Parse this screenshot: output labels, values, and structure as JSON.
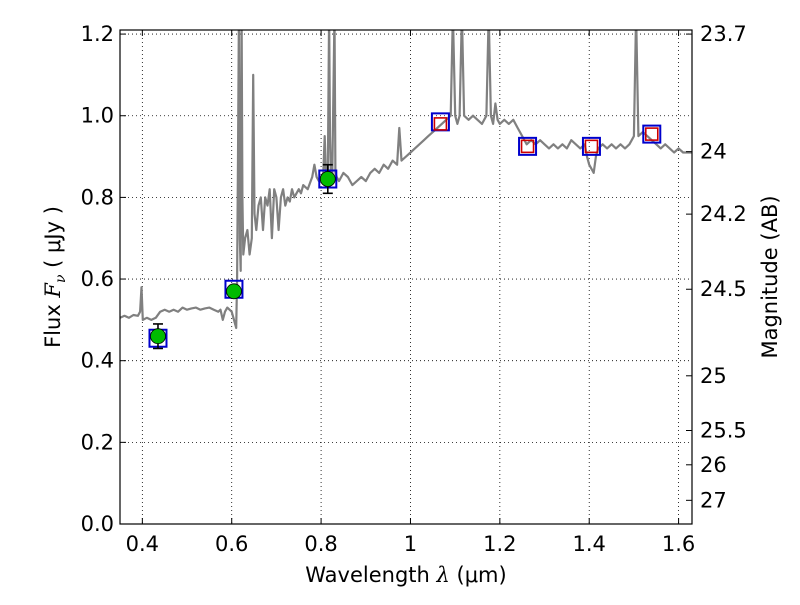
{
  "chart_data": {
    "type": "line",
    "title": "",
    "xlabel": "Wavelength  λ (μm)",
    "ylabel": "Flux  F_ν ( μJy )",
    "ylabel_parts": {
      "prefix": "Flux  ",
      "symbol": "F",
      "subscript": "ν",
      "suffix": " ( μJy )"
    },
    "xlabel_parts": {
      "prefix": "Wavelength  ",
      "symbol": "λ",
      "suffix": " (μm)"
    },
    "y2label": "Magnitude (AB)",
    "xlim": [
      0.35,
      1.63
    ],
    "ylim": [
      0.0,
      1.21
    ],
    "grid": true,
    "x_ticks": [
      0.4,
      0.6,
      0.8,
      1.0,
      1.2,
      1.4,
      1.6
    ],
    "x_tick_labels": [
      "0.4",
      "0.6",
      "0.8",
      "1",
      "1.2",
      "1.4",
      "1.6"
    ],
    "y_ticks": [
      0.0,
      0.2,
      0.4,
      0.6,
      0.8,
      1.0,
      1.2
    ],
    "y_tick_labels": [
      "0.0",
      "0.2",
      "0.4",
      "0.6",
      "0.8",
      "1.0",
      "1.2"
    ],
    "y2_ticks": [
      {
        "label": "23.7",
        "flux": 1.2
      },
      {
        "label": "24",
        "flux": 0.912
      },
      {
        "label": "24.2",
        "flux": 0.759
      },
      {
        "label": "24.5",
        "flux": 0.575
      },
      {
        "label": "25",
        "flux": 0.363
      },
      {
        "label": "25.5",
        "flux": 0.229
      },
      {
        "label": "26",
        "flux": 0.145
      },
      {
        "label": "27",
        "flux": 0.058
      }
    ],
    "series": [
      {
        "name": "model-spectrum",
        "kind": "line",
        "color": "#808080",
        "points": [
          [
            0.35,
            0.505
          ],
          [
            0.36,
            0.51
          ],
          [
            0.37,
            0.505
          ],
          [
            0.38,
            0.512
          ],
          [
            0.39,
            0.51
          ],
          [
            0.395,
            0.52
          ],
          [
            0.398,
            0.58
          ],
          [
            0.401,
            0.5
          ],
          [
            0.41,
            0.505
          ],
          [
            0.42,
            0.5
          ],
          [
            0.43,
            0.505
          ],
          [
            0.44,
            0.52
          ],
          [
            0.45,
            0.525
          ],
          [
            0.46,
            0.52
          ],
          [
            0.47,
            0.525
          ],
          [
            0.48,
            0.52
          ],
          [
            0.49,
            0.53
          ],
          [
            0.5,
            0.525
          ],
          [
            0.51,
            0.528
          ],
          [
            0.52,
            0.53
          ],
          [
            0.53,
            0.525
          ],
          [
            0.54,
            0.528
          ],
          [
            0.55,
            0.53
          ],
          [
            0.56,
            0.525
          ],
          [
            0.57,
            0.52
          ],
          [
            0.575,
            0.525
          ],
          [
            0.58,
            0.5
          ],
          [
            0.585,
            0.52
          ],
          [
            0.59,
            0.53
          ],
          [
            0.6,
            0.52
          ],
          [
            0.605,
            0.5
          ],
          [
            0.61,
            0.48
          ],
          [
            0.612,
            0.6
          ],
          [
            0.614,
            0.9
          ],
          [
            0.616,
            1.25
          ],
          [
            0.618,
            0.7
          ],
          [
            0.62,
            0.62
          ],
          [
            0.622,
            1.25
          ],
          [
            0.624,
            0.8
          ],
          [
            0.626,
            0.66
          ],
          [
            0.63,
            0.7
          ],
          [
            0.635,
            0.72
          ],
          [
            0.64,
            0.66
          ],
          [
            0.645,
            0.7
          ],
          [
            0.648,
            1.1
          ],
          [
            0.651,
            0.76
          ],
          [
            0.655,
            0.72
          ],
          [
            0.66,
            0.78
          ],
          [
            0.665,
            0.8
          ],
          [
            0.67,
            0.72
          ],
          [
            0.675,
            0.8
          ],
          [
            0.68,
            0.78
          ],
          [
            0.685,
            0.82
          ],
          [
            0.69,
            0.7
          ],
          [
            0.695,
            0.82
          ],
          [
            0.7,
            0.8
          ],
          [
            0.705,
            0.72
          ],
          [
            0.71,
            0.8
          ],
          [
            0.715,
            0.82
          ],
          [
            0.72,
            0.78
          ],
          [
            0.725,
            0.8
          ],
          [
            0.73,
            0.79
          ],
          [
            0.735,
            0.82
          ],
          [
            0.74,
            0.8
          ],
          [
            0.745,
            0.81
          ],
          [
            0.75,
            0.82
          ],
          [
            0.755,
            0.81
          ],
          [
            0.76,
            0.83
          ],
          [
            0.77,
            0.82
          ],
          [
            0.78,
            0.85
          ],
          [
            0.785,
            0.88
          ],
          [
            0.79,
            0.85
          ],
          [
            0.795,
            0.84
          ],
          [
            0.8,
            0.85
          ],
          [
            0.805,
            0.86
          ],
          [
            0.808,
            0.95
          ],
          [
            0.811,
            0.85
          ],
          [
            0.815,
            0.85
          ],
          [
            0.818,
            1.25
          ],
          [
            0.82,
            0.95
          ],
          [
            0.822,
            0.85
          ],
          [
            0.825,
            0.86
          ],
          [
            0.83,
            1.25
          ],
          [
            0.832,
            0.86
          ],
          [
            0.835,
            0.85
          ],
          [
            0.84,
            0.84
          ],
          [
            0.85,
            0.86
          ],
          [
            0.86,
            0.85
          ],
          [
            0.87,
            0.83
          ],
          [
            0.88,
            0.84
          ],
          [
            0.89,
            0.85
          ],
          [
            0.9,
            0.84
          ],
          [
            0.91,
            0.86
          ],
          [
            0.92,
            0.87
          ],
          [
            0.93,
            0.86
          ],
          [
            0.94,
            0.88
          ],
          [
            0.95,
            0.87
          ],
          [
            0.96,
            0.89
          ],
          [
            0.97,
            0.88
          ],
          [
            0.975,
            0.97
          ],
          [
            0.98,
            0.89
          ],
          [
            0.99,
            0.9
          ],
          [
            1.0,
            0.91
          ],
          [
            1.01,
            0.92
          ],
          [
            1.02,
            0.93
          ],
          [
            1.03,
            0.94
          ],
          [
            1.04,
            0.95
          ],
          [
            1.05,
            0.96
          ],
          [
            1.06,
            0.97
          ],
          [
            1.07,
            0.98
          ],
          [
            1.08,
            0.99
          ],
          [
            1.09,
            1.0
          ],
          [
            1.095,
            1.25
          ],
          [
            1.1,
            1.0
          ],
          [
            1.105,
            0.98
          ],
          [
            1.11,
            1.0
          ],
          [
            1.115,
            1.25
          ],
          [
            1.12,
            1.0
          ],
          [
            1.13,
            0.99
          ],
          [
            1.14,
            1.0
          ],
          [
            1.15,
            0.99
          ],
          [
            1.16,
            0.98
          ],
          [
            1.17,
            1.0
          ],
          [
            1.175,
            1.25
          ],
          [
            1.18,
            1.0
          ],
          [
            1.185,
            0.98
          ],
          [
            1.19,
            1.03
          ],
          [
            1.195,
            0.99
          ],
          [
            1.2,
            0.98
          ],
          [
            1.21,
            0.99
          ],
          [
            1.22,
            0.98
          ],
          [
            1.23,
            0.99
          ],
          [
            1.24,
            0.97
          ],
          [
            1.25,
            0.95
          ],
          [
            1.26,
            0.93
          ],
          [
            1.27,
            0.94
          ],
          [
            1.28,
            0.93
          ],
          [
            1.29,
            0.94
          ],
          [
            1.3,
            0.93
          ],
          [
            1.31,
            0.92
          ],
          [
            1.32,
            0.93
          ],
          [
            1.33,
            0.92
          ],
          [
            1.34,
            0.93
          ],
          [
            1.35,
            0.92
          ],
          [
            1.36,
            0.94
          ],
          [
            1.37,
            0.93
          ],
          [
            1.38,
            0.92
          ],
          [
            1.39,
            0.93
          ],
          [
            1.395,
            0.9
          ],
          [
            1.4,
            0.88
          ],
          [
            1.405,
            0.87
          ],
          [
            1.41,
            0.86
          ],
          [
            1.415,
            0.9
          ],
          [
            1.42,
            0.92
          ],
          [
            1.43,
            0.93
          ],
          [
            1.44,
            0.92
          ],
          [
            1.45,
            0.93
          ],
          [
            1.46,
            0.92
          ],
          [
            1.47,
            0.93
          ],
          [
            1.48,
            0.92
          ],
          [
            1.49,
            0.93
          ],
          [
            1.495,
            0.94
          ],
          [
            1.5,
            0.95
          ],
          [
            1.505,
            1.25
          ],
          [
            1.51,
            0.95
          ],
          [
            1.52,
            0.96
          ],
          [
            1.53,
            0.95
          ],
          [
            1.54,
            0.94
          ],
          [
            1.55,
            0.93
          ],
          [
            1.56,
            0.92
          ],
          [
            1.57,
            0.93
          ],
          [
            1.58,
            0.92
          ],
          [
            1.59,
            0.91
          ],
          [
            1.6,
            0.92
          ],
          [
            1.61,
            0.91
          ],
          [
            1.62,
            0.91
          ],
          [
            1.63,
            0.91
          ]
        ]
      },
      {
        "name": "model-photometry",
        "kind": "square",
        "color": "#0000cc",
        "points": [
          [
            0.435,
            0.455
          ],
          [
            0.605,
            0.575
          ],
          [
            0.815,
            0.845
          ],
          [
            1.067,
            0.985
          ],
          [
            1.262,
            0.925
          ],
          [
            1.405,
            0.925
          ],
          [
            1.54,
            0.955
          ]
        ]
      },
      {
        "name": "observed-photometry",
        "kind": "circle-with-errorbar",
        "color": "#00bb00",
        "points": [
          [
            0.435,
            0.46,
            0.03
          ],
          [
            0.605,
            0.57,
            0.0
          ],
          [
            0.815,
            0.845,
            0.035
          ]
        ]
      },
      {
        "name": "upper-limit-photometry",
        "kind": "open-square",
        "color": "#cc0000",
        "points": [
          [
            1.067,
            0.98
          ],
          [
            1.262,
            0.925
          ],
          [
            1.405,
            0.925
          ],
          [
            1.54,
            0.955
          ]
        ]
      }
    ]
  }
}
